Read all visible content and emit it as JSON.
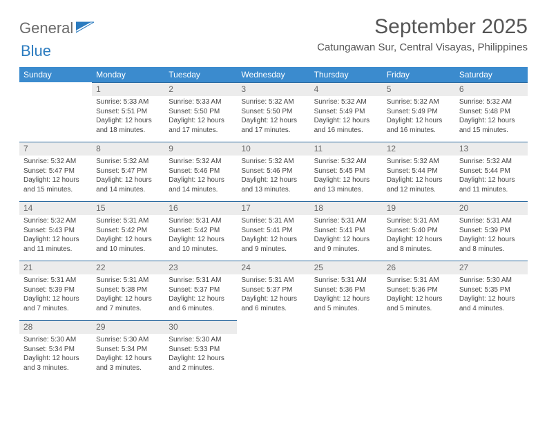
{
  "brand": {
    "general": "General",
    "blue": "Blue"
  },
  "title": {
    "month": "September 2025",
    "location": "Catungawan Sur, Central Visayas, Philippines"
  },
  "colors": {
    "header_bg": "#3b8bce",
    "header_text": "#ffffff",
    "daynum_bg": "#ececec",
    "daynum_border": "#2b6aa0",
    "body_text": "#444444",
    "logo_gray": "#6b6b6b",
    "logo_blue": "#2b7bbf"
  },
  "weekdays": [
    "Sunday",
    "Monday",
    "Tuesday",
    "Wednesday",
    "Thursday",
    "Friday",
    "Saturday"
  ],
  "weeks": [
    [
      null,
      {
        "n": "1",
        "sr": "Sunrise: 5:33 AM",
        "ss": "Sunset: 5:51 PM",
        "d1": "Daylight: 12 hours",
        "d2": "and 18 minutes."
      },
      {
        "n": "2",
        "sr": "Sunrise: 5:33 AM",
        "ss": "Sunset: 5:50 PM",
        "d1": "Daylight: 12 hours",
        "d2": "and 17 minutes."
      },
      {
        "n": "3",
        "sr": "Sunrise: 5:32 AM",
        "ss": "Sunset: 5:50 PM",
        "d1": "Daylight: 12 hours",
        "d2": "and 17 minutes."
      },
      {
        "n": "4",
        "sr": "Sunrise: 5:32 AM",
        "ss": "Sunset: 5:49 PM",
        "d1": "Daylight: 12 hours",
        "d2": "and 16 minutes."
      },
      {
        "n": "5",
        "sr": "Sunrise: 5:32 AM",
        "ss": "Sunset: 5:49 PM",
        "d1": "Daylight: 12 hours",
        "d2": "and 16 minutes."
      },
      {
        "n": "6",
        "sr": "Sunrise: 5:32 AM",
        "ss": "Sunset: 5:48 PM",
        "d1": "Daylight: 12 hours",
        "d2": "and 15 minutes."
      }
    ],
    [
      {
        "n": "7",
        "sr": "Sunrise: 5:32 AM",
        "ss": "Sunset: 5:47 PM",
        "d1": "Daylight: 12 hours",
        "d2": "and 15 minutes."
      },
      {
        "n": "8",
        "sr": "Sunrise: 5:32 AM",
        "ss": "Sunset: 5:47 PM",
        "d1": "Daylight: 12 hours",
        "d2": "and 14 minutes."
      },
      {
        "n": "9",
        "sr": "Sunrise: 5:32 AM",
        "ss": "Sunset: 5:46 PM",
        "d1": "Daylight: 12 hours",
        "d2": "and 14 minutes."
      },
      {
        "n": "10",
        "sr": "Sunrise: 5:32 AM",
        "ss": "Sunset: 5:46 PM",
        "d1": "Daylight: 12 hours",
        "d2": "and 13 minutes."
      },
      {
        "n": "11",
        "sr": "Sunrise: 5:32 AM",
        "ss": "Sunset: 5:45 PM",
        "d1": "Daylight: 12 hours",
        "d2": "and 13 minutes."
      },
      {
        "n": "12",
        "sr": "Sunrise: 5:32 AM",
        "ss": "Sunset: 5:44 PM",
        "d1": "Daylight: 12 hours",
        "d2": "and 12 minutes."
      },
      {
        "n": "13",
        "sr": "Sunrise: 5:32 AM",
        "ss": "Sunset: 5:44 PM",
        "d1": "Daylight: 12 hours",
        "d2": "and 11 minutes."
      }
    ],
    [
      {
        "n": "14",
        "sr": "Sunrise: 5:32 AM",
        "ss": "Sunset: 5:43 PM",
        "d1": "Daylight: 12 hours",
        "d2": "and 11 minutes."
      },
      {
        "n": "15",
        "sr": "Sunrise: 5:31 AM",
        "ss": "Sunset: 5:42 PM",
        "d1": "Daylight: 12 hours",
        "d2": "and 10 minutes."
      },
      {
        "n": "16",
        "sr": "Sunrise: 5:31 AM",
        "ss": "Sunset: 5:42 PM",
        "d1": "Daylight: 12 hours",
        "d2": "and 10 minutes."
      },
      {
        "n": "17",
        "sr": "Sunrise: 5:31 AM",
        "ss": "Sunset: 5:41 PM",
        "d1": "Daylight: 12 hours",
        "d2": "and 9 minutes."
      },
      {
        "n": "18",
        "sr": "Sunrise: 5:31 AM",
        "ss": "Sunset: 5:41 PM",
        "d1": "Daylight: 12 hours",
        "d2": "and 9 minutes."
      },
      {
        "n": "19",
        "sr": "Sunrise: 5:31 AM",
        "ss": "Sunset: 5:40 PM",
        "d1": "Daylight: 12 hours",
        "d2": "and 8 minutes."
      },
      {
        "n": "20",
        "sr": "Sunrise: 5:31 AM",
        "ss": "Sunset: 5:39 PM",
        "d1": "Daylight: 12 hours",
        "d2": "and 8 minutes."
      }
    ],
    [
      {
        "n": "21",
        "sr": "Sunrise: 5:31 AM",
        "ss": "Sunset: 5:39 PM",
        "d1": "Daylight: 12 hours",
        "d2": "and 7 minutes."
      },
      {
        "n": "22",
        "sr": "Sunrise: 5:31 AM",
        "ss": "Sunset: 5:38 PM",
        "d1": "Daylight: 12 hours",
        "d2": "and 7 minutes."
      },
      {
        "n": "23",
        "sr": "Sunrise: 5:31 AM",
        "ss": "Sunset: 5:37 PM",
        "d1": "Daylight: 12 hours",
        "d2": "and 6 minutes."
      },
      {
        "n": "24",
        "sr": "Sunrise: 5:31 AM",
        "ss": "Sunset: 5:37 PM",
        "d1": "Daylight: 12 hours",
        "d2": "and 6 minutes."
      },
      {
        "n": "25",
        "sr": "Sunrise: 5:31 AM",
        "ss": "Sunset: 5:36 PM",
        "d1": "Daylight: 12 hours",
        "d2": "and 5 minutes."
      },
      {
        "n": "26",
        "sr": "Sunrise: 5:31 AM",
        "ss": "Sunset: 5:36 PM",
        "d1": "Daylight: 12 hours",
        "d2": "and 5 minutes."
      },
      {
        "n": "27",
        "sr": "Sunrise: 5:30 AM",
        "ss": "Sunset: 5:35 PM",
        "d1": "Daylight: 12 hours",
        "d2": "and 4 minutes."
      }
    ],
    [
      {
        "n": "28",
        "sr": "Sunrise: 5:30 AM",
        "ss": "Sunset: 5:34 PM",
        "d1": "Daylight: 12 hours",
        "d2": "and 3 minutes."
      },
      {
        "n": "29",
        "sr": "Sunrise: 5:30 AM",
        "ss": "Sunset: 5:34 PM",
        "d1": "Daylight: 12 hours",
        "d2": "and 3 minutes."
      },
      {
        "n": "30",
        "sr": "Sunrise: 5:30 AM",
        "ss": "Sunset: 5:33 PM",
        "d1": "Daylight: 12 hours",
        "d2": "and 2 minutes."
      },
      null,
      null,
      null,
      null
    ]
  ]
}
